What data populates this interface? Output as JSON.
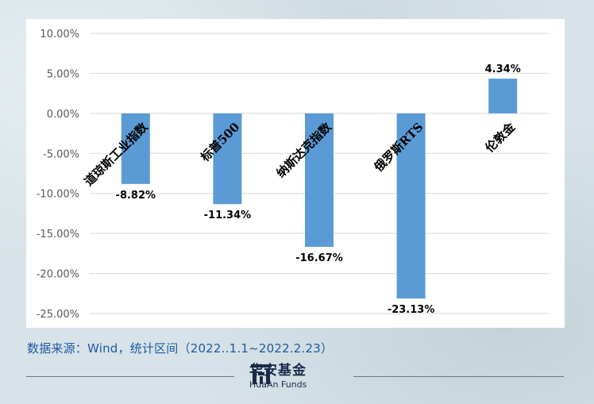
{
  "chart_data": {
    "type": "bar",
    "categories": [
      "道琼斯工业指数",
      "标普500",
      "纳斯达克指数",
      "俄罗斯RTS",
      "伦敦金"
    ],
    "values": [
      -8.82,
      -11.34,
      -16.67,
      -23.13,
      4.34
    ],
    "data_labels": [
      "-8.82%",
      "-11.34%",
      "-16.67%",
      "-23.13%",
      "4.34%"
    ],
    "ylim": [
      -25,
      10
    ],
    "yticks": [
      10,
      5,
      0,
      -5,
      -10,
      -15,
      -20,
      -25
    ],
    "ytick_labels": [
      "10.00%",
      "5.00%",
      "0.00%",
      "-5.00%",
      "-10.00%",
      "-15.00%",
      "-20.00%",
      "-25.00%"
    ],
    "bar_color": "#5b9bd5",
    "grid": true
  },
  "source_text": "数据来源：Wind，统计区间（2022..1.1~2022.2.23）",
  "logo": {
    "cn": "华安基金",
    "en": "HuaAn Funds"
  }
}
